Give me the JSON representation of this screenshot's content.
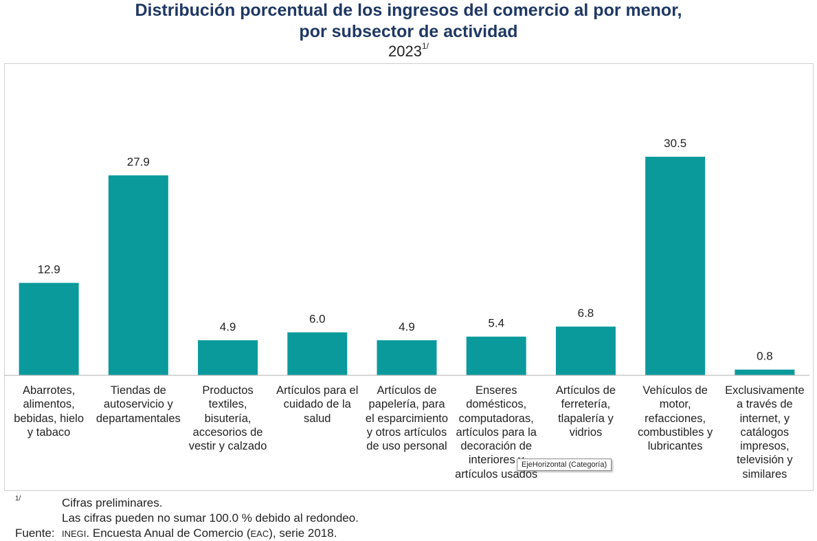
{
  "title_line1": "Distribución porcentual de los ingresos del comercio al por menor,",
  "title_line2": "por subsector de actividad",
  "year": "2023",
  "year_note_mark": "1/",
  "chart_data": {
    "type": "bar",
    "categories": [
      "Abarrotes,\nalimentos,\nbebidas, hielo\ny tabaco",
      "Tiendas de\nautoservicio y\ndepartamentales",
      "Productos\ntextiles,\nbisutería,\naccesorios de\nvestir y calzado",
      "Artículos para el\ncuidado de la\nsalud",
      "Artículos de\npapelería, para\nel esparcimiento\ny otros artículos\nde uso personal",
      "Enseres\ndomésticos,\ncomputadoras,\nartículos para la\ndecoración de\ninteriores y\nartículos usados",
      "Artículos de\nferretería,\ntlapalería y\nvidrios",
      "Vehículos de\nmotor,\nrefacciones,\ncombustibles y\nlubricantes",
      "Exclusivamente\na través de\ninternet, y\ncatálogos\nimpresos,\ntelevisión y\nsimilares"
    ],
    "values": [
      12.9,
      27.9,
      4.9,
      6.0,
      4.9,
      5.4,
      6.8,
      30.5,
      0.8
    ],
    "value_labels": [
      "12.9",
      "27.9",
      "4.9",
      "6.0",
      "4.9",
      "5.4",
      "6.8",
      "30.5",
      "0.8"
    ],
    "ylim": [
      0,
      33
    ],
    "grid": false,
    "bar_color": "#0a9a9c"
  },
  "tooltip": "EjeHorizontal (Categoría)",
  "notes": {
    "mark": "1/",
    "line1": "Cifras preliminares.",
    "line2": "Las cifras pueden no sumar 100.0 % debido al redondeo.",
    "source_label": "Fuente:",
    "source_org": "INEGI",
    "source_text_a": ". Encuesta Anual de Comercio (",
    "source_abbr": "EAC",
    "source_text_b": "), serie 2018."
  }
}
